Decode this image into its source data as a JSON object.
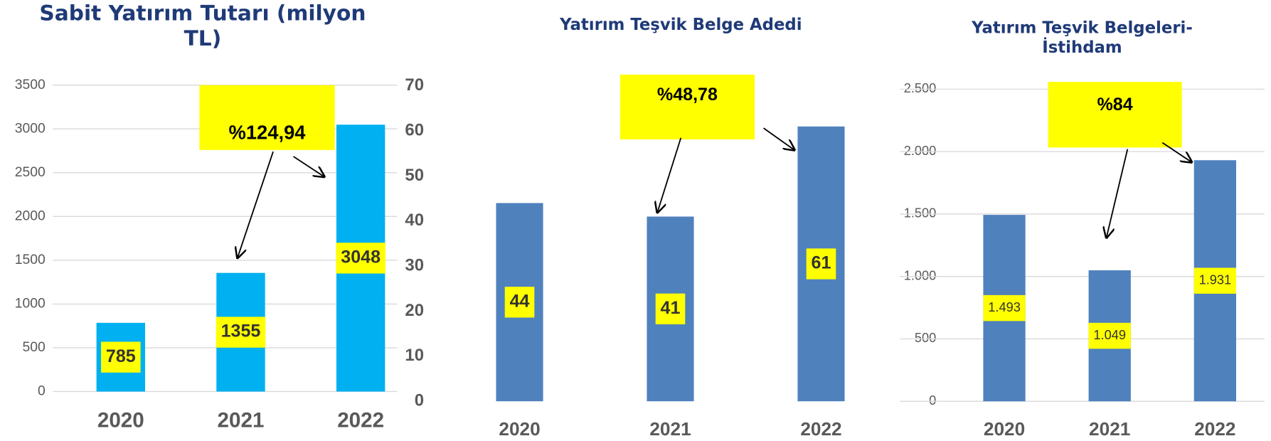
{
  "chart_data": [
    {
      "type": "bar",
      "title": "Sabit Yatırım Tutarı (milyon TL)",
      "categories": [
        "2020",
        "2021",
        "2022"
      ],
      "values": [
        785,
        1355,
        3048
      ],
      "color": "#00b0f0",
      "ylim": [
        0,
        3500
      ],
      "yticks": [
        0,
        500,
        1000,
        1500,
        2000,
        2500,
        3000,
        3500
      ],
      "grid": true,
      "annotation": "%124,94"
    },
    {
      "type": "bar",
      "title": "Yatırım Teşvik Belge Adedi",
      "categories": [
        "2020",
        "2021",
        "2022"
      ],
      "values": [
        44,
        41,
        61
      ],
      "color": "#4f81bd",
      "ylim": [
        0,
        70
      ],
      "yticks": [
        0,
        10,
        20,
        30,
        40,
        50,
        60,
        70
      ],
      "grid": false,
      "annotation": "%48,78"
    },
    {
      "type": "bar",
      "title": "Yatırım Teşvik Belgeleri-İstihdam",
      "categories": [
        "2020",
        "2021",
        "2022"
      ],
      "values": [
        1493,
        1049,
        1931
      ],
      "value_labels": [
        "1.493",
        "1.049",
        "1.931"
      ],
      "color": "#4f81bd",
      "ylim": [
        0,
        2500
      ],
      "yticks": [
        0,
        {
          "value": 500,
          "label": "500"
        },
        {
          "value": 1000,
          "label": "1.000"
        },
        {
          "value": 1500,
          "label": "1.500"
        },
        {
          "value": 2000,
          "label": "2.000"
        },
        {
          "value": 2500,
          "label": "2.500"
        }
      ],
      "grid": true,
      "annotation": "%84"
    }
  ]
}
